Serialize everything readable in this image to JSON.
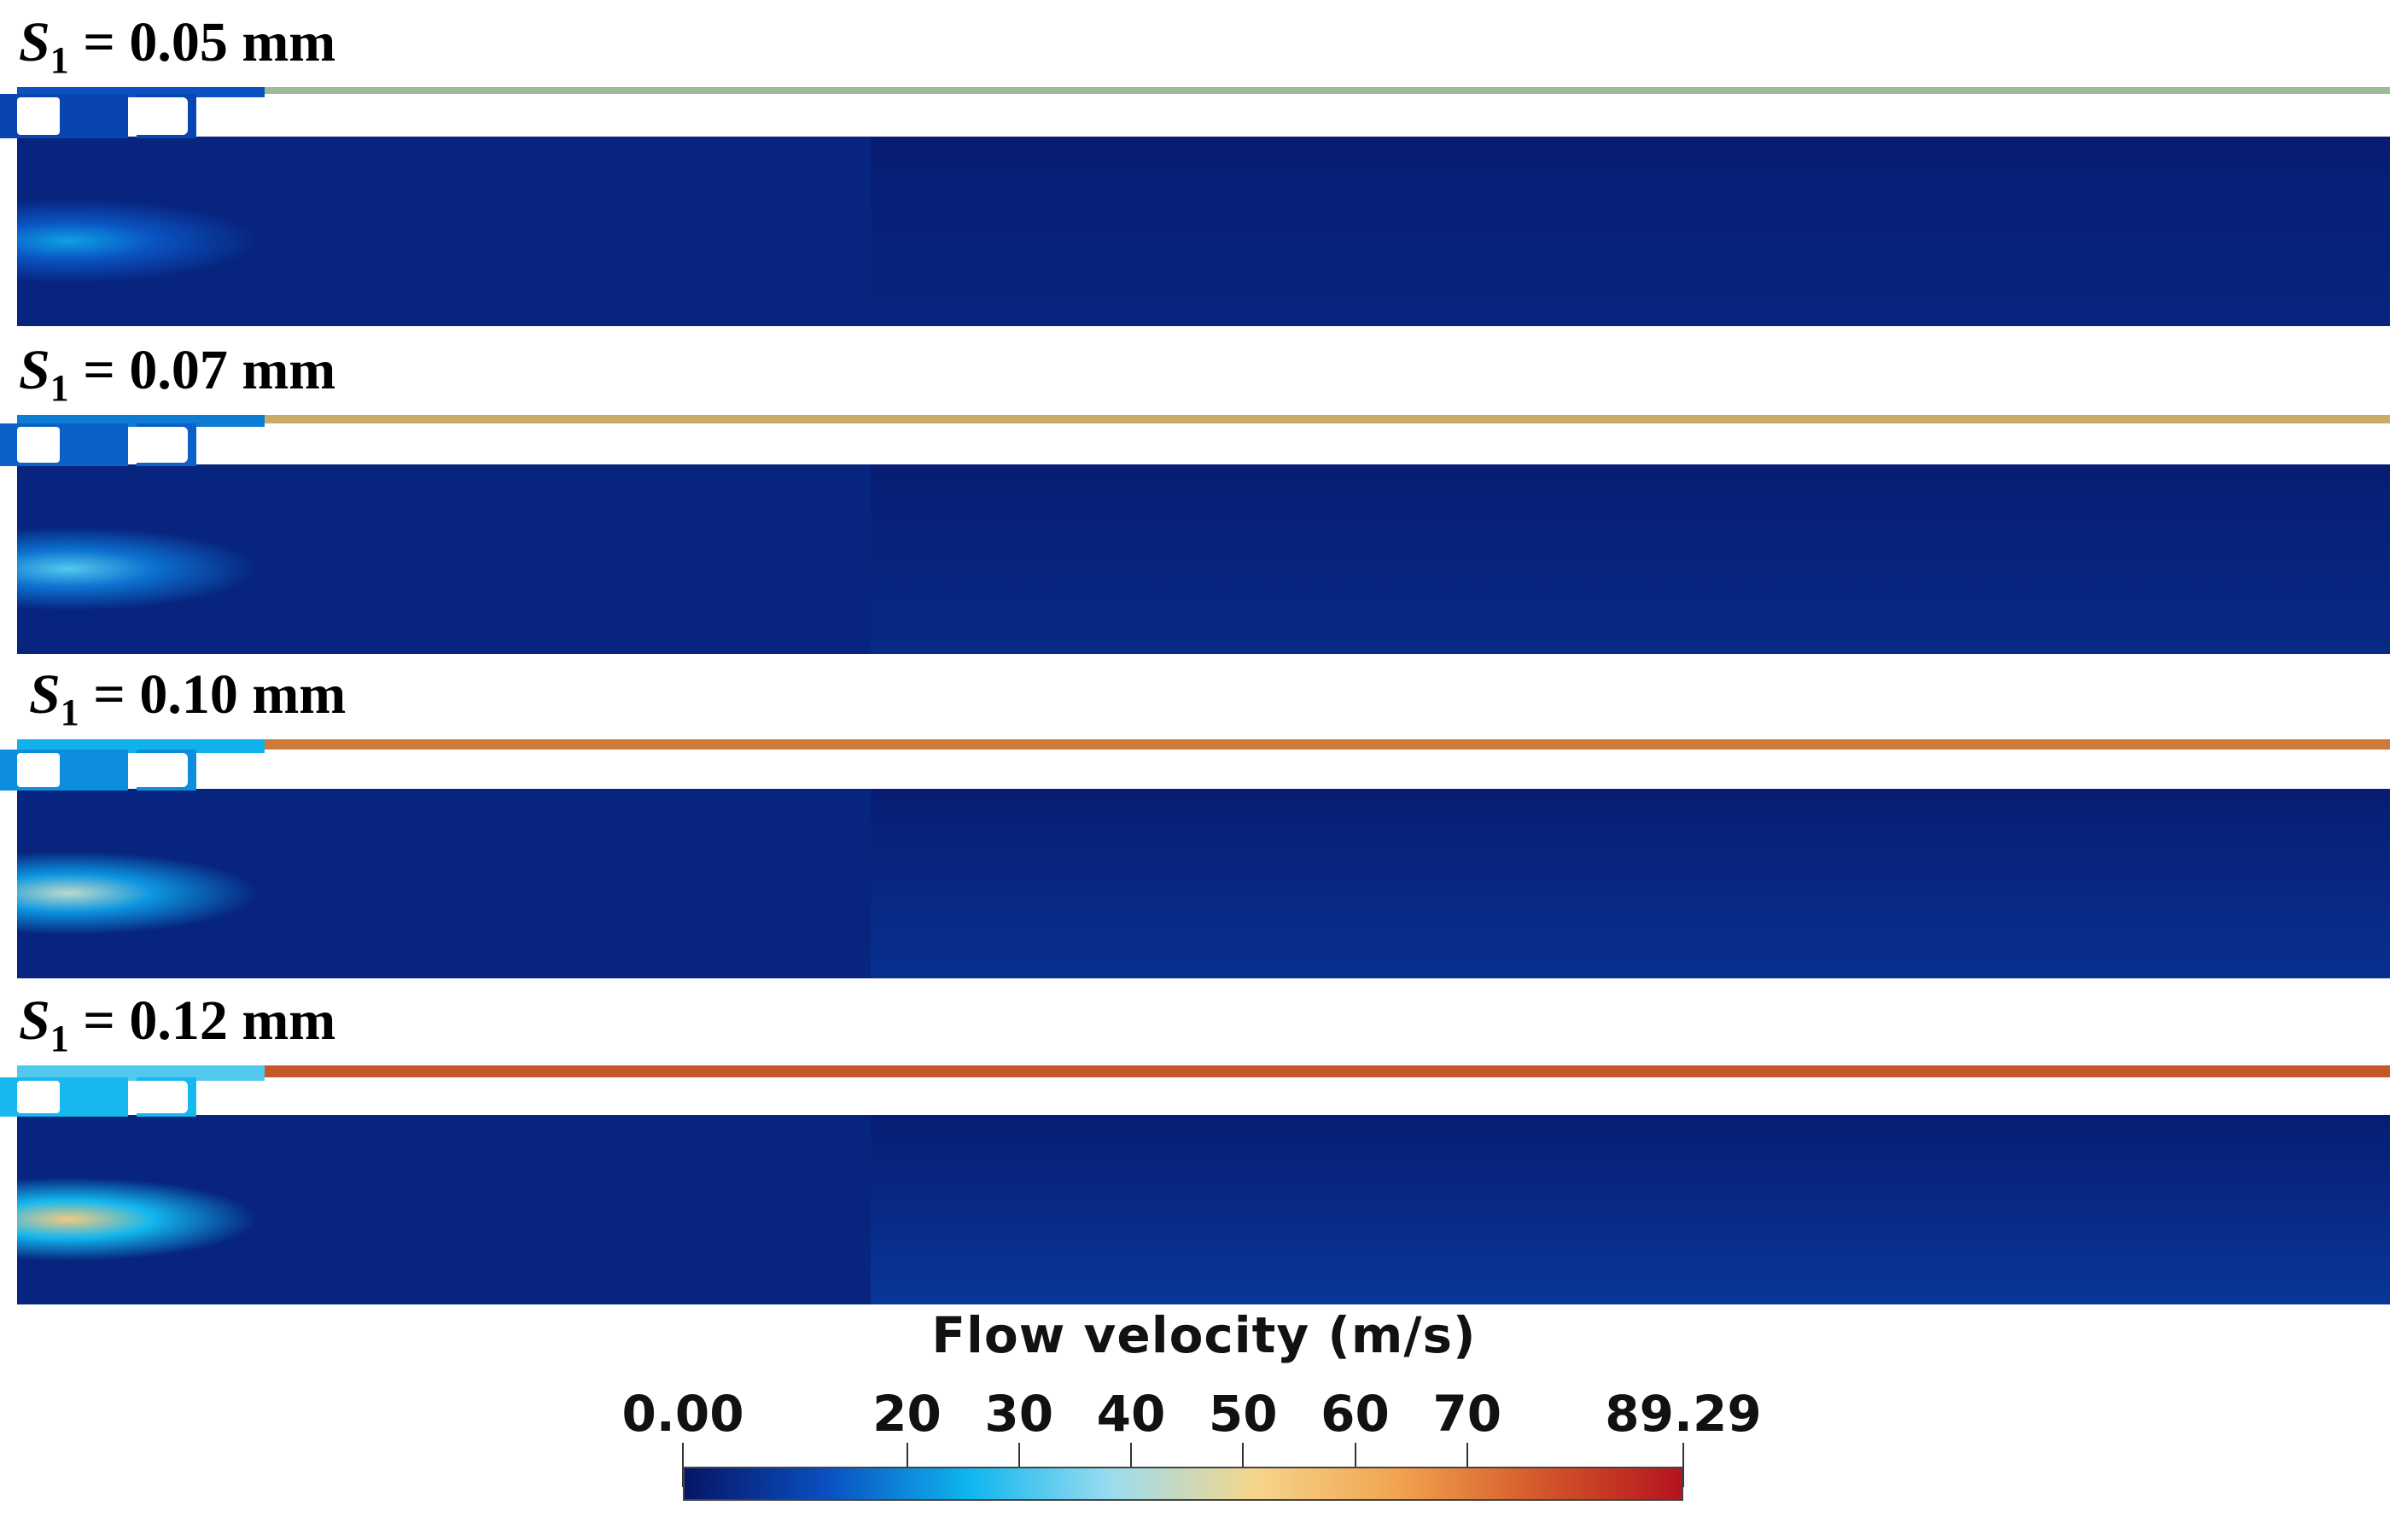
{
  "panels": [
    {
      "symbol": "S",
      "subscript": "1",
      "label_rest": "= 0.05 mm",
      "top_strip_color": "#9dbb98",
      "jet_intensity": 0.15
    },
    {
      "symbol": "S",
      "subscript": "1",
      "label_rest": "= 0.07 mm",
      "top_strip_color": "#c9ac6a",
      "jet_intensity": 0.35
    },
    {
      "symbol": "S",
      "subscript": "1",
      "label_rest": "= 0.10 mm",
      "top_strip_color": "#cf7a38",
      "jet_intensity": 0.6
    },
    {
      "symbol": "S",
      "subscript": "1",
      "label_rest": "= 0.12 mm",
      "top_strip_color": "#c5572a",
      "jet_intensity": 0.85
    }
  ],
  "legend": {
    "title": "Flow velocity (m/s)",
    "min": 0.0,
    "max": 89.29,
    "ticks": [
      "0.00",
      "20",
      "30",
      "40",
      "50",
      "60",
      "70",
      "89.29"
    ],
    "tick_values": [
      0,
      20,
      30,
      40,
      50,
      60,
      70,
      89.29
    ],
    "colormap": [
      "#061566",
      "#0a4fc0",
      "#0fb6ef",
      "#9bdcef",
      "#f5d68c",
      "#f2a450",
      "#d4582a",
      "#b4141e"
    ]
  }
}
